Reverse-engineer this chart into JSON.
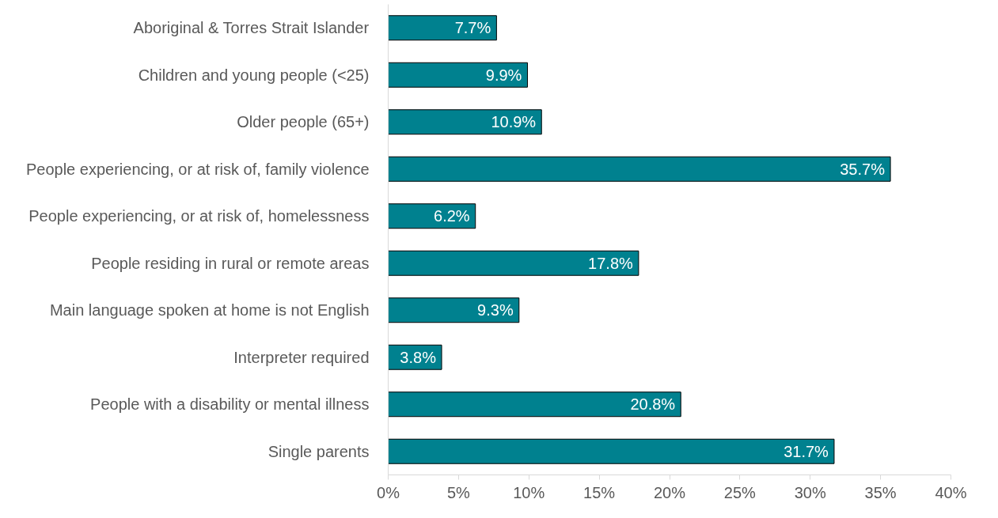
{
  "chart_data": {
    "type": "bar",
    "orientation": "horizontal",
    "categories": [
      "Aboriginal & Torres Strait Islander",
      "Children and young people (<25)",
      "Older people (65+)",
      "People experiencing, or at risk of, family violence",
      "People experiencing, or at risk of, homelessness",
      "People residing in rural or remote areas",
      "Main language spoken at home is not English",
      "Interpreter required",
      "People with a disability or mental illness",
      "Single parents"
    ],
    "values": [
      7.7,
      9.9,
      10.9,
      35.7,
      6.2,
      17.8,
      9.3,
      3.8,
      20.8,
      31.7
    ],
    "value_labels": [
      "7.7%",
      "9.9%",
      "10.9%",
      "35.7%",
      "6.2%",
      "17.8%",
      "9.3%",
      "3.8%",
      "20.8%",
      "31.7%"
    ],
    "color": "#00818f",
    "xlim": [
      0,
      40
    ],
    "xticks": [
      {
        "value": 0,
        "label": "0%"
      },
      {
        "value": 5,
        "label": "5%"
      },
      {
        "value": 10,
        "label": "10%"
      },
      {
        "value": 15,
        "label": "15%"
      },
      {
        "value": 20,
        "label": "20%"
      },
      {
        "value": 25,
        "label": "25%"
      },
      {
        "value": 30,
        "label": "30%"
      },
      {
        "value": 35,
        "label": "35%"
      },
      {
        "value": 40,
        "label": "40%"
      }
    ],
    "grid": false
  }
}
